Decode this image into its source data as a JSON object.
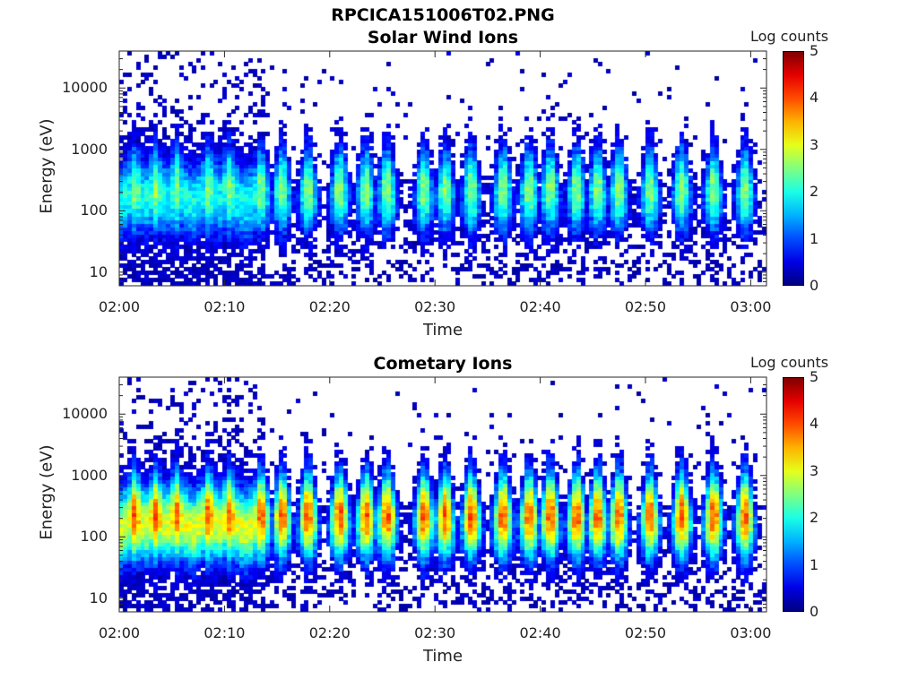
{
  "figure": {
    "title": "RPCICA151006T02.PNG"
  },
  "chart_data": [
    {
      "type": "heatmap",
      "title": "Solar Wind Ions",
      "xlabel": "Time",
      "ylabel": "Energy (eV)",
      "x_ticks": [
        "02:00",
        "02:10",
        "02:20",
        "02:30",
        "02:40",
        "02:50",
        "03:00"
      ],
      "x_range_minutes": [
        0,
        61.5
      ],
      "y_ticks": [
        "10",
        "100",
        "1000",
        "10000"
      ],
      "y_scale": "log",
      "y_range": [
        6,
        40000
      ],
      "colorbar": {
        "label": "Log counts",
        "ticks": [
          "0",
          "1",
          "2",
          "3",
          "4",
          "5"
        ],
        "range": [
          0,
          5
        ],
        "colormap": "jet"
      },
      "peak_log_counts": 2.6,
      "activity_bursts_minutes": [
        1.5,
        3.5,
        5.5,
        8.5,
        10.5,
        13.5,
        15.5,
        18,
        21,
        23.5,
        25.5,
        29,
        31,
        33.5,
        36.5,
        39,
        41,
        43.5,
        45.5,
        47.5,
        50.5,
        53.5,
        56.5,
        59.5
      ]
    },
    {
      "type": "heatmap",
      "title": "Cometary Ions",
      "xlabel": "Time",
      "ylabel": "Energy (eV)",
      "x_ticks": [
        "02:00",
        "02:10",
        "02:20",
        "02:30",
        "02:40",
        "02:50",
        "03:00"
      ],
      "x_range_minutes": [
        0,
        61.5
      ],
      "y_ticks": [
        "10",
        "100",
        "1000",
        "10000"
      ],
      "y_scale": "log",
      "y_range": [
        6,
        40000
      ],
      "colorbar": {
        "label": "Log counts",
        "ticks": [
          "0",
          "1",
          "2",
          "3",
          "4",
          "5"
        ],
        "range": [
          0,
          5
        ],
        "colormap": "jet"
      },
      "peak_log_counts": 4.0,
      "activity_bursts_minutes": [
        1.5,
        3.5,
        5.5,
        8.5,
        10.5,
        13.5,
        15.5,
        18,
        21,
        23.5,
        25.5,
        29,
        31,
        33.5,
        36.5,
        39,
        41,
        43.5,
        45.5,
        47.5,
        50.5,
        53.5,
        56.5,
        59.5
      ]
    }
  ]
}
